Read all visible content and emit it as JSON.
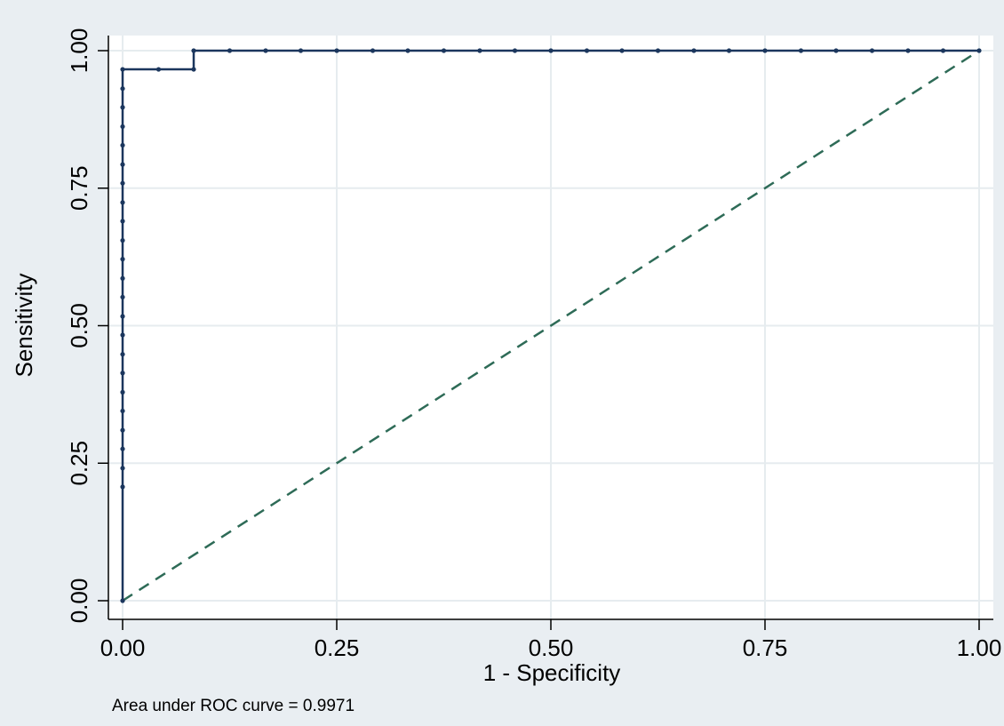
{
  "chart_data": {
    "type": "line",
    "title": "",
    "xlabel": "1 - Specificity",
    "ylabel": "Sensitivity",
    "xlim": [
      0,
      1
    ],
    "ylim": [
      0,
      1
    ],
    "xticks": [
      "0.00",
      "0.25",
      "0.50",
      "0.75",
      "1.00"
    ],
    "yticks": [
      "0.00",
      "0.25",
      "0.50",
      "0.75",
      "1.00"
    ],
    "grid": true,
    "note": "Area under ROC curve = 0.9971",
    "colors": {
      "background": "#e9eef2",
      "plot_background": "#ffffff",
      "grid": "#e6ecef",
      "roc": "#1b365d",
      "reference": "#2e6b57"
    },
    "series": [
      {
        "style": "solid-with-markers",
        "points": [
          [
            0,
            0
          ],
          [
            0,
            0.207
          ],
          [
            0,
            0.241
          ],
          [
            0,
            0.276
          ],
          [
            0,
            0.31
          ],
          [
            0,
            0.345
          ],
          [
            0,
            0.379
          ],
          [
            0,
            0.414
          ],
          [
            0,
            0.448
          ],
          [
            0,
            0.483
          ],
          [
            0,
            0.517
          ],
          [
            0,
            0.552
          ],
          [
            0,
            0.586
          ],
          [
            0,
            0.621
          ],
          [
            0,
            0.655
          ],
          [
            0,
            0.69
          ],
          [
            0,
            0.724
          ],
          [
            0,
            0.759
          ],
          [
            0,
            0.793
          ],
          [
            0,
            0.828
          ],
          [
            0,
            0.862
          ],
          [
            0,
            0.897
          ],
          [
            0,
            0.931
          ],
          [
            0,
            0.966
          ],
          [
            0.042,
            0.966
          ],
          [
            0.083,
            0.966
          ],
          [
            0.083,
            1.0
          ],
          [
            0.125,
            1.0
          ],
          [
            0.167,
            1.0
          ],
          [
            0.208,
            1.0
          ],
          [
            0.25,
            1.0
          ],
          [
            0.292,
            1.0
          ],
          [
            0.333,
            1.0
          ],
          [
            0.375,
            1.0
          ],
          [
            0.417,
            1.0
          ],
          [
            0.458,
            1.0
          ],
          [
            0.5,
            1.0
          ],
          [
            0.542,
            1.0
          ],
          [
            0.583,
            1.0
          ],
          [
            0.625,
            1.0
          ],
          [
            0.667,
            1.0
          ],
          [
            0.708,
            1.0
          ],
          [
            0.75,
            1.0
          ],
          [
            0.792,
            1.0
          ],
          [
            0.833,
            1.0
          ],
          [
            0.875,
            1.0
          ],
          [
            0.917,
            1.0
          ],
          [
            0.958,
            1.0
          ],
          [
            1.0,
            1.0
          ]
        ]
      },
      {
        "style": "dashed",
        "points": [
          [
            0,
            0
          ],
          [
            1,
            1
          ]
        ]
      }
    ]
  }
}
